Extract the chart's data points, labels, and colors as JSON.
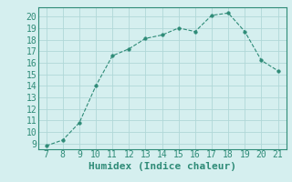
{
  "x": [
    7,
    8,
    9,
    10,
    11,
    12,
    13,
    14,
    15,
    16,
    17,
    18,
    19,
    20,
    21
  ],
  "y": [
    8.8,
    9.3,
    10.8,
    14.0,
    16.6,
    17.2,
    18.1,
    18.4,
    19.0,
    18.7,
    20.1,
    20.3,
    18.7,
    16.2,
    15.3
  ],
  "xlabel": "Humidex (Indice chaleur)",
  "line_color": "#2e8b77",
  "marker_color": "#2e8b77",
  "bg_color": "#d5efef",
  "grid_color": "#b0d8d8",
  "xlim_min": 6.5,
  "xlim_max": 21.5,
  "ylim_min": 8.5,
  "ylim_max": 20.8,
  "yticks": [
    9,
    10,
    11,
    12,
    13,
    14,
    15,
    16,
    17,
    18,
    19,
    20
  ],
  "xticks": [
    7,
    8,
    9,
    10,
    11,
    12,
    13,
    14,
    15,
    16,
    17,
    18,
    19,
    20,
    21
  ],
  "tick_label_color": "#2e8b77",
  "xlabel_color": "#2e8b77",
  "xlabel_fontsize": 8,
  "tick_fontsize": 7,
  "spine_color": "#2e8b77"
}
